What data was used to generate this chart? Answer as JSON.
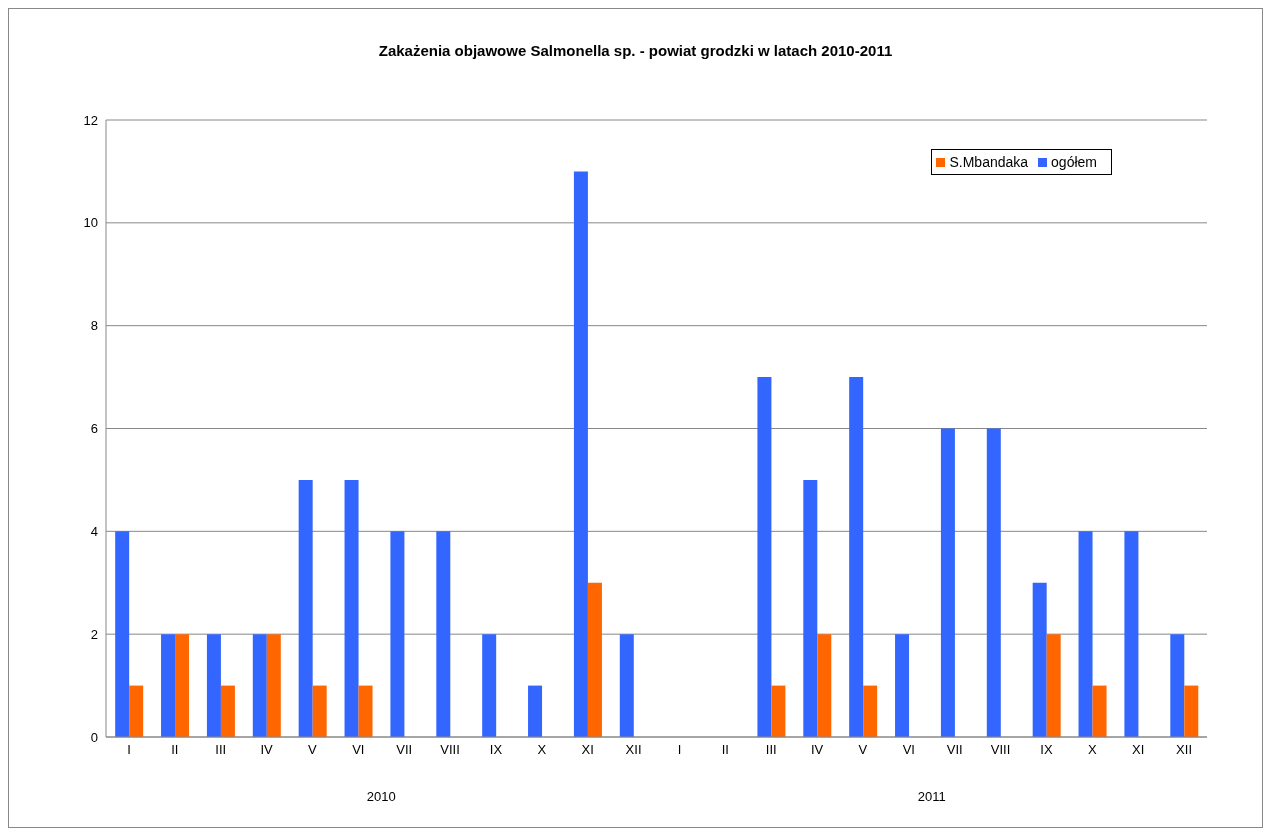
{
  "chart_data": {
    "type": "bar",
    "title": "Zakażenia objawowe Salmonella sp. - powiat grodzki w latach 2010-2011",
    "categories": [
      "I",
      "II",
      "III",
      "IV",
      "V",
      "VI",
      "VII",
      "VIII",
      "IX",
      "X",
      "XI",
      "XII",
      "I",
      "II",
      "III",
      "IV",
      "V",
      "VI",
      "VII",
      "VIII",
      "IX",
      "X",
      "XI",
      "XII"
    ],
    "series": [
      {
        "name": "ogółem",
        "color": "#3366ff",
        "values": [
          4,
          2,
          2,
          2,
          5,
          5,
          4,
          4,
          2,
          1,
          11,
          2,
          0,
          0,
          7,
          5,
          7,
          2,
          6,
          6,
          3,
          4,
          4,
          2
        ]
      },
      {
        "name": "S.Mbandaka",
        "color": "#ff6600",
        "values": [
          1,
          2,
          1,
          2,
          1,
          1,
          0,
          0,
          0,
          0,
          3,
          0,
          0,
          0,
          1,
          2,
          1,
          0,
          0,
          0,
          2,
          1,
          0,
          1
        ]
      }
    ],
    "annotations": [
      "2010",
      "2011"
    ],
    "ylim": [
      0,
      12
    ],
    "yticks": [
      0,
      2,
      4,
      6,
      8,
      10,
      12
    ],
    "grid": "y",
    "legend": "top right"
  }
}
